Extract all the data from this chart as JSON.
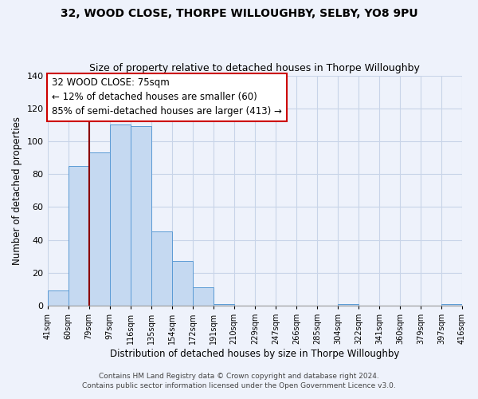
{
  "title1": "32, WOOD CLOSE, THORPE WILLOUGHBY, SELBY, YO8 9PU",
  "title2": "Size of property relative to detached houses in Thorpe Willoughby",
  "xlabel": "Distribution of detached houses by size in Thorpe Willoughby",
  "ylabel": "Number of detached properties",
  "bin_labels": [
    "41sqm",
    "60sqm",
    "79sqm",
    "97sqm",
    "116sqm",
    "135sqm",
    "154sqm",
    "172sqm",
    "191sqm",
    "210sqm",
    "229sqm",
    "247sqm",
    "266sqm",
    "285sqm",
    "304sqm",
    "322sqm",
    "341sqm",
    "360sqm",
    "379sqm",
    "397sqm",
    "416sqm"
  ],
  "bar_heights": [
    9,
    85,
    93,
    110,
    109,
    45,
    27,
    11,
    1,
    0,
    0,
    0,
    0,
    0,
    1,
    0,
    0,
    0,
    0,
    1
  ],
  "bar_color": "#c5d9f1",
  "bar_edge_color": "#5b9bd5",
  "annotation_line1": "32 WOOD CLOSE: 75sqm",
  "annotation_line2": "← 12% of detached houses are smaller (60)",
  "annotation_line3": "85% of semi-detached houses are larger (413) →",
  "vline_color": "#8b0000",
  "ylim_max": 140,
  "yticks": [
    0,
    20,
    40,
    60,
    80,
    100,
    120,
    140
  ],
  "footer1": "Contains HM Land Registry data © Crown copyright and database right 2024.",
  "footer2": "Contains public sector information licensed under the Open Government Licence v3.0.",
  "bg_color": "#eef2fb",
  "grid_color": "#c8d4e8"
}
